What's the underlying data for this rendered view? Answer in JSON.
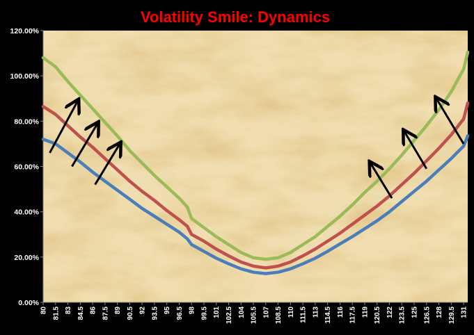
{
  "chart_data": {
    "type": "line",
    "title": "Volatility Smile: Dynamics",
    "xlabel": "",
    "ylabel": "",
    "ylim": [
      0,
      1.2
    ],
    "yticks": [
      "0.00%",
      "20.00%",
      "40.00%",
      "60.00%",
      "80.00%",
      "100.00%",
      "120.00%"
    ],
    "x_tick_labels": [
      "80",
      "81.5",
      "83",
      "84.5",
      "86",
      "87.5",
      "89",
      "90.5",
      "92",
      "93.5",
      "95",
      "96.5",
      "98",
      "99.5",
      "101",
      "102.5",
      "104",
      "105.5",
      "107",
      "108.5",
      "110",
      "111.5",
      "113",
      "114.5",
      "116",
      "117.5",
      "119",
      "120.5",
      "122",
      "123.5",
      "125",
      "126.5",
      "128",
      "129.5",
      "131"
    ],
    "xlim": [
      80,
      131.5
    ],
    "grid": false,
    "legend": "none",
    "series": [
      {
        "color": "#4a7ebb",
        "x": [
          80,
          81.5,
          83,
          84.5,
          86,
          87.5,
          89,
          90.5,
          92,
          93.5,
          95,
          96.5,
          97.5,
          98,
          99.5,
          101,
          102.5,
          104,
          105.5,
          107,
          108.5,
          110,
          111.5,
          113,
          114.5,
          116,
          117.5,
          119,
          120.5,
          122,
          123.5,
          125,
          126.5,
          128,
          129.5,
          131,
          131.5
        ],
        "values": [
          0.72,
          0.7,
          0.66,
          0.62,
          0.575,
          0.535,
          0.495,
          0.455,
          0.415,
          0.38,
          0.345,
          0.31,
          0.28,
          0.255,
          0.225,
          0.195,
          0.17,
          0.148,
          0.133,
          0.127,
          0.133,
          0.148,
          0.17,
          0.195,
          0.225,
          0.258,
          0.29,
          0.325,
          0.36,
          0.4,
          0.445,
          0.49,
          0.535,
          0.585,
          0.635,
          0.69,
          0.735
        ]
      },
      {
        "color": "#c0504d",
        "x": [
          80,
          81.5,
          83,
          84.5,
          86,
          87.5,
          89,
          90.5,
          92,
          93.5,
          95,
          96.5,
          97.5,
          98,
          99.5,
          101,
          102.5,
          104,
          105.5,
          107,
          108.5,
          110,
          111.5,
          113,
          114.5,
          116,
          117.5,
          119,
          120.5,
          122,
          123.5,
          125,
          126.5,
          128,
          129.5,
          131,
          131.5
        ],
        "values": [
          0.865,
          0.83,
          0.78,
          0.73,
          0.685,
          0.635,
          0.585,
          0.535,
          0.49,
          0.45,
          0.405,
          0.365,
          0.335,
          0.3,
          0.27,
          0.235,
          0.205,
          0.178,
          0.16,
          0.152,
          0.16,
          0.178,
          0.205,
          0.235,
          0.27,
          0.305,
          0.345,
          0.385,
          0.425,
          0.47,
          0.52,
          0.57,
          0.625,
          0.68,
          0.74,
          0.81,
          0.88
        ]
      },
      {
        "color": "#9bbb59",
        "x": [
          80,
          81.5,
          83,
          84.5,
          86,
          87.5,
          89,
          90.5,
          92,
          93.5,
          95,
          96.5,
          97.5,
          98,
          99.5,
          101,
          102.5,
          104,
          105.5,
          107,
          108.5,
          110,
          111.5,
          113,
          114.5,
          116,
          117.5,
          119,
          120.5,
          122,
          123.5,
          125,
          126.5,
          128,
          129.5,
          131,
          131.5
        ],
        "values": [
          1.08,
          1.04,
          0.975,
          0.915,
          0.855,
          0.795,
          0.735,
          0.67,
          0.615,
          0.56,
          0.51,
          0.46,
          0.42,
          0.37,
          0.33,
          0.29,
          0.255,
          0.22,
          0.197,
          0.19,
          0.197,
          0.22,
          0.255,
          0.29,
          0.335,
          0.38,
          0.43,
          0.485,
          0.535,
          0.59,
          0.65,
          0.715,
          0.78,
          0.85,
          0.93,
          1.03,
          1.105
        ]
      }
    ],
    "annotations": {
      "arrow_color": "#000000",
      "arrows": [
        {
          "from": [
            80.8,
            0.66
          ],
          "to": [
            84.2,
            0.89
          ]
        },
        {
          "from": [
            83.5,
            0.6
          ],
          "to": [
            86.6,
            0.79
          ]
        },
        {
          "from": [
            86.3,
            0.52
          ],
          "to": [
            89.3,
            0.7
          ]
        },
        {
          "from": [
            122.3,
            0.46
          ],
          "to": [
            119.7,
            0.615
          ]
        },
        {
          "from": [
            126.5,
            0.59
          ],
          "to": [
            123.8,
            0.755
          ]
        },
        {
          "from": [
            131.0,
            0.7
          ],
          "to": [
            127.7,
            0.9
          ]
        }
      ]
    },
    "colors": {
      "title": "#ff0000",
      "background": "#000000",
      "plot_area": "#f0deb0",
      "text": "#ffffff",
      "axis": "#888888"
    }
  }
}
